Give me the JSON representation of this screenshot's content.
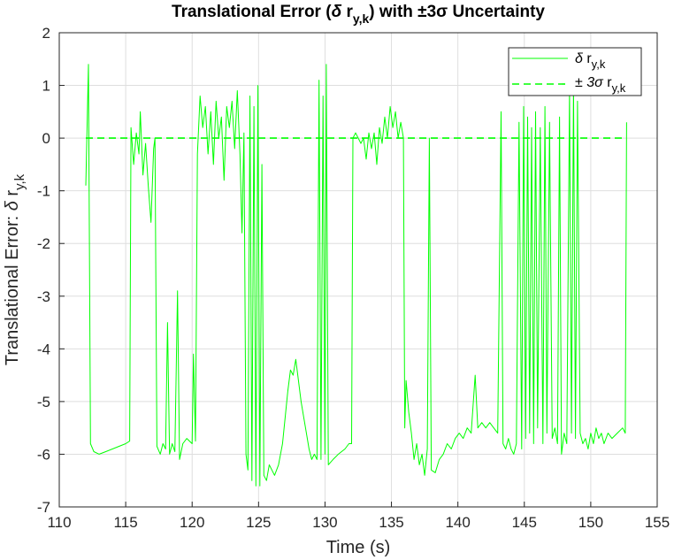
{
  "chart_data": {
    "type": "line",
    "title": "Translational Error (δ r_{y,k}) with ±3σ Uncertainty",
    "title_parts": {
      "main": "Translational Error (",
      "delta": "δ",
      "r": " r",
      "sub": "y,k",
      "rest": ") with ±3σ Uncertainty"
    },
    "xlabel": "Time (s)",
    "ylabel_parts": {
      "main": "Translational Error: ",
      "delta": "δ",
      "r": " r",
      "sub": "y,k"
    },
    "xlim": [
      110,
      155
    ],
    "ylim": [
      -7,
      2
    ],
    "xticks": [
      110,
      115,
      120,
      125,
      130,
      135,
      140,
      145,
      150,
      155
    ],
    "yticks": [
      2,
      1,
      0,
      -1,
      -2,
      -3,
      -4,
      -5,
      -6,
      -7
    ],
    "grid": true,
    "legend_position": "top-right",
    "series": [
      {
        "legend_parts": {
          "delta": "δ",
          "r": " r",
          "sub": "y,k"
        },
        "style": "solid",
        "color": "#00ff00",
        "points": [
          [
            112.0,
            -0.9
          ],
          [
            112.2,
            1.4
          ],
          [
            112.35,
            -5.8
          ],
          [
            112.6,
            -5.95
          ],
          [
            113.0,
            -6.0
          ],
          [
            113.5,
            -5.95
          ],
          [
            114.0,
            -5.9
          ],
          [
            114.5,
            -5.85
          ],
          [
            115.0,
            -5.8
          ],
          [
            115.3,
            -5.75
          ],
          [
            115.4,
            0.2
          ],
          [
            115.6,
            -0.5
          ],
          [
            115.8,
            0.1
          ],
          [
            116.0,
            -0.3
          ],
          [
            116.1,
            0.5
          ],
          [
            116.3,
            -0.7
          ],
          [
            116.5,
            -0.1
          ],
          [
            116.7,
            -0.9
          ],
          [
            116.9,
            -1.6
          ],
          [
            117.1,
            -0.2
          ],
          [
            117.2,
            0.0
          ],
          [
            117.35,
            -5.85
          ],
          [
            117.6,
            -6.0
          ],
          [
            117.8,
            -5.8
          ],
          [
            118.0,
            -5.9
          ],
          [
            118.15,
            -3.5
          ],
          [
            118.3,
            -6.0
          ],
          [
            118.5,
            -5.8
          ],
          [
            118.7,
            -5.95
          ],
          [
            118.9,
            -2.9
          ],
          [
            119.05,
            -6.1
          ],
          [
            119.3,
            -5.8
          ],
          [
            119.6,
            -5.7
          ],
          [
            120.0,
            -5.8
          ],
          [
            120.1,
            -4.1
          ],
          [
            120.25,
            -5.75
          ],
          [
            120.4,
            -0.3
          ],
          [
            120.6,
            0.8
          ],
          [
            120.8,
            0.2
          ],
          [
            121.0,
            0.6
          ],
          [
            121.2,
            -0.3
          ],
          [
            121.4,
            0.5
          ],
          [
            121.6,
            -0.5
          ],
          [
            121.8,
            0.7
          ],
          [
            122.0,
            0.0
          ],
          [
            122.2,
            0.4
          ],
          [
            122.4,
            -0.8
          ],
          [
            122.6,
            0.6
          ],
          [
            122.8,
            0.2
          ],
          [
            123.0,
            0.7
          ],
          [
            123.2,
            -0.2
          ],
          [
            123.4,
            0.9
          ],
          [
            123.6,
            -0.3
          ],
          [
            123.75,
            -1.8
          ],
          [
            123.9,
            0.1
          ],
          [
            124.05,
            -6.0
          ],
          [
            124.2,
            -6.3
          ],
          [
            124.35,
            0.8
          ],
          [
            124.5,
            -6.5
          ],
          [
            124.65,
            0.6
          ],
          [
            124.8,
            -6.6
          ],
          [
            124.95,
            1.0
          ],
          [
            125.1,
            -6.6
          ],
          [
            125.25,
            -0.5
          ],
          [
            125.4,
            -6.4
          ],
          [
            125.6,
            -6.5
          ],
          [
            125.8,
            -6.2
          ],
          [
            126.0,
            -6.3
          ],
          [
            126.2,
            -6.4
          ],
          [
            126.5,
            -6.2
          ],
          [
            126.8,
            -5.8
          ],
          [
            127.0,
            -5.3
          ],
          [
            127.2,
            -4.8
          ],
          [
            127.4,
            -4.4
          ],
          [
            127.6,
            -4.5
          ],
          [
            127.8,
            -4.2
          ],
          [
            128.0,
            -4.6
          ],
          [
            128.2,
            -5.0
          ],
          [
            128.4,
            -5.3
          ],
          [
            128.6,
            -5.6
          ],
          [
            128.8,
            -5.9
          ],
          [
            129.0,
            -6.1
          ],
          [
            129.2,
            -6.0
          ],
          [
            129.4,
            -6.1
          ],
          [
            129.55,
            1.1
          ],
          [
            129.7,
            -6.1
          ],
          [
            129.85,
            0.8
          ],
          [
            130.0,
            -6.0
          ],
          [
            130.1,
            1.4
          ],
          [
            130.25,
            -6.2
          ],
          [
            130.6,
            -6.1
          ],
          [
            131.0,
            -6.0
          ],
          [
            131.5,
            -5.9
          ],
          [
            131.8,
            -5.8
          ],
          [
            132.0,
            -5.8
          ],
          [
            132.1,
            0.0
          ],
          [
            132.3,
            0.1
          ],
          [
            132.5,
            0.0
          ],
          [
            132.7,
            -0.1
          ],
          [
            132.9,
            0.0
          ],
          [
            133.1,
            -0.4
          ],
          [
            133.3,
            0.1
          ],
          [
            133.5,
            -0.2
          ],
          [
            133.7,
            0.1
          ],
          [
            133.9,
            -0.5
          ],
          [
            134.1,
            0.2
          ],
          [
            134.3,
            -0.1
          ],
          [
            134.5,
            0.4
          ],
          [
            134.7,
            0.0
          ],
          [
            134.9,
            0.6
          ],
          [
            135.1,
            0.2
          ],
          [
            135.3,
            0.5
          ],
          [
            135.5,
            0.0
          ],
          [
            135.7,
            0.3
          ],
          [
            135.9,
            0.0
          ],
          [
            136.0,
            -5.5
          ],
          [
            136.1,
            -4.6
          ],
          [
            136.3,
            -5.2
          ],
          [
            136.5,
            -5.6
          ],
          [
            136.7,
            -6.1
          ],
          [
            136.9,
            -5.8
          ],
          [
            137.1,
            -6.2
          ],
          [
            137.3,
            -6.0
          ],
          [
            137.5,
            -6.4
          ],
          [
            137.7,
            -5.9
          ],
          [
            137.85,
            0.0
          ],
          [
            138.0,
            -6.3
          ],
          [
            138.3,
            -6.35
          ],
          [
            138.6,
            -6.1
          ],
          [
            138.9,
            -6.0
          ],
          [
            139.2,
            -5.8
          ],
          [
            139.5,
            -5.9
          ],
          [
            139.8,
            -5.7
          ],
          [
            140.1,
            -5.6
          ],
          [
            140.4,
            -5.7
          ],
          [
            140.7,
            -5.5
          ],
          [
            141.0,
            -5.6
          ],
          [
            141.3,
            -4.5
          ],
          [
            141.5,
            -5.5
          ],
          [
            141.8,
            -5.4
          ],
          [
            142.1,
            -5.5
          ],
          [
            142.4,
            -5.4
          ],
          [
            142.7,
            -5.5
          ],
          [
            143.0,
            -5.6
          ],
          [
            143.25,
            0.5
          ],
          [
            143.4,
            -5.8
          ],
          [
            143.6,
            -5.9
          ],
          [
            143.8,
            -5.7
          ],
          [
            144.0,
            -5.9
          ],
          [
            144.2,
            -6.0
          ],
          [
            144.4,
            -5.8
          ],
          [
            144.6,
            0.3
          ],
          [
            144.8,
            -5.9
          ],
          [
            144.95,
            0.6
          ],
          [
            145.1,
            -5.7
          ],
          [
            145.25,
            0.4
          ],
          [
            145.4,
            -5.6
          ],
          [
            145.55,
            0.2
          ],
          [
            145.7,
            -5.8
          ],
          [
            145.85,
            0.5
          ],
          [
            146.0,
            -5.5
          ],
          [
            146.2,
            0.2
          ],
          [
            146.4,
            -5.8
          ],
          [
            146.55,
            0.6
          ],
          [
            146.7,
            -5.6
          ],
          [
            146.9,
            0.3
          ],
          [
            147.1,
            -5.7
          ],
          [
            147.3,
            -5.5
          ],
          [
            147.5,
            -5.8
          ],
          [
            147.65,
            0.4
          ],
          [
            147.8,
            -6.0
          ],
          [
            148.0,
            -5.6
          ],
          [
            148.2,
            -5.8
          ],
          [
            148.4,
            0.9
          ],
          [
            148.55,
            -5.6
          ],
          [
            148.7,
            1.0
          ],
          [
            148.85,
            -5.7
          ],
          [
            149.0,
            0.7
          ],
          [
            149.2,
            -5.6
          ],
          [
            149.4,
            -5.8
          ],
          [
            149.6,
            -5.7
          ],
          [
            149.8,
            -5.9
          ],
          [
            150.0,
            -5.6
          ],
          [
            150.2,
            -5.8
          ],
          [
            150.4,
            -5.5
          ],
          [
            150.6,
            -5.7
          ],
          [
            150.8,
            -5.6
          ],
          [
            151.0,
            -5.8
          ],
          [
            151.3,
            -5.6
          ],
          [
            151.6,
            -5.7
          ],
          [
            152.0,
            -5.6
          ],
          [
            152.4,
            -5.5
          ],
          [
            152.6,
            -5.6
          ],
          [
            152.7,
            0.3
          ]
        ]
      },
      {
        "legend_parts": {
          "pm": "±",
          "sigma": " 3σ",
          "r": " r",
          "sub": "y,k"
        },
        "style": "dashed",
        "color": "#00ff00",
        "points": [
          [
            112.0,
            0.0
          ],
          [
            152.7,
            0.0
          ]
        ]
      }
    ]
  }
}
